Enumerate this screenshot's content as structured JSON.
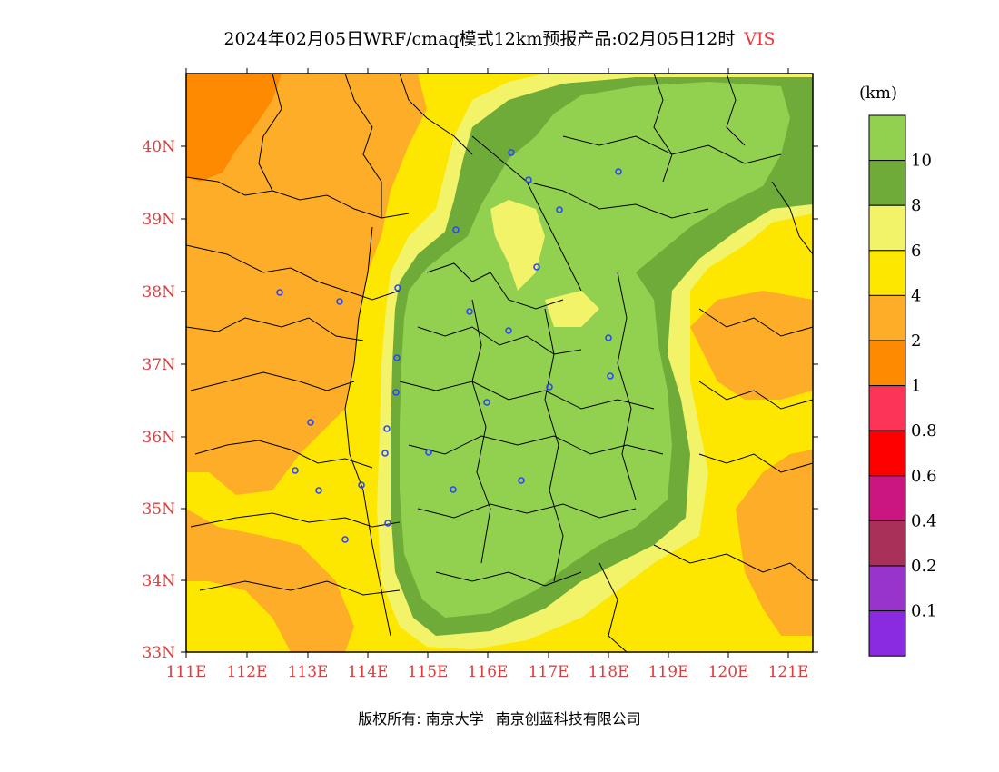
{
  "title": {
    "main": "2024年02月05日WRF/cmaq模式12km预报产品:02月05日12时",
    "variable": "VIS"
  },
  "lat_labels": [
    "40N",
    "39N",
    "38N",
    "37N",
    "36N",
    "35N",
    "34N",
    "33N"
  ],
  "lon_labels": [
    "111E",
    "112E",
    "113E",
    "114E",
    "115E",
    "116E",
    "117E",
    "118E",
    "119E",
    "120E",
    "121E"
  ],
  "colorbar": {
    "unit": "(km)",
    "levels": [
      {
        "color": "#92d050",
        "label": "10"
      },
      {
        "color": "#6eab38",
        "label": "8"
      },
      {
        "color": "#f3f36a",
        "label": "6"
      },
      {
        "color": "#fde700",
        "label": "4"
      },
      {
        "color": "#fdad27",
        "label": "2"
      },
      {
        "color": "#fd8a00",
        "label": "1"
      },
      {
        "color": "#fc3457",
        "label": "0.8"
      },
      {
        "color": "#ff0000",
        "label": "0.6"
      },
      {
        "color": "#cc167f",
        "label": "0.4"
      },
      {
        "color": "#a93058",
        "label": "0.2"
      },
      {
        "color": "#9934cb",
        "label": "0.1"
      },
      {
        "color": "#8a2be2",
        "label": ""
      }
    ]
  },
  "colors": {
    "vis_gt10": "#92d050",
    "vis_8_10": "#6eab38",
    "vis_6_8": "#f3f36a",
    "vis_4_6": "#fde700",
    "vis_2_4": "#fdad27",
    "vis_1_2": "#fd8a00",
    "axis_label": "#e03c3c",
    "city_marker": "#2b46ff"
  },
  "footer": {
    "left": "版权所有: 南京大学",
    "right": "南京创蓝科技有限公司"
  }
}
